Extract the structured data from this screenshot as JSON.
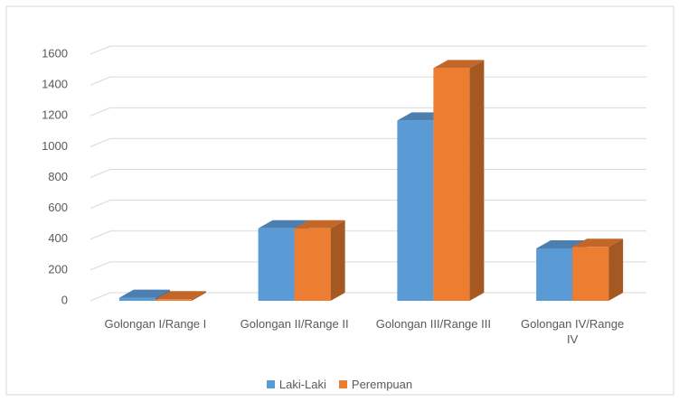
{
  "chart_data": {
    "type": "bar3d",
    "categories": [
      "Golongan I/Range I",
      "Golongan II/Range II",
      "Golongan III/Range III",
      "Golongan IV/Range IV"
    ],
    "series": [
      {
        "name": "Laki-Laki",
        "color": "#5b9bd5",
        "values": [
          20,
          470,
          1170,
          340
        ]
      },
      {
        "name": "Perempuan",
        "color": "#ed7d31",
        "values": [
          10,
          470,
          1510,
          350
        ]
      }
    ],
    "ylim": [
      0,
      1600
    ],
    "yticks": [
      0,
      200,
      400,
      600,
      800,
      1000,
      1200,
      1400,
      1600
    ],
    "grid": true,
    "legend": "bottom"
  }
}
